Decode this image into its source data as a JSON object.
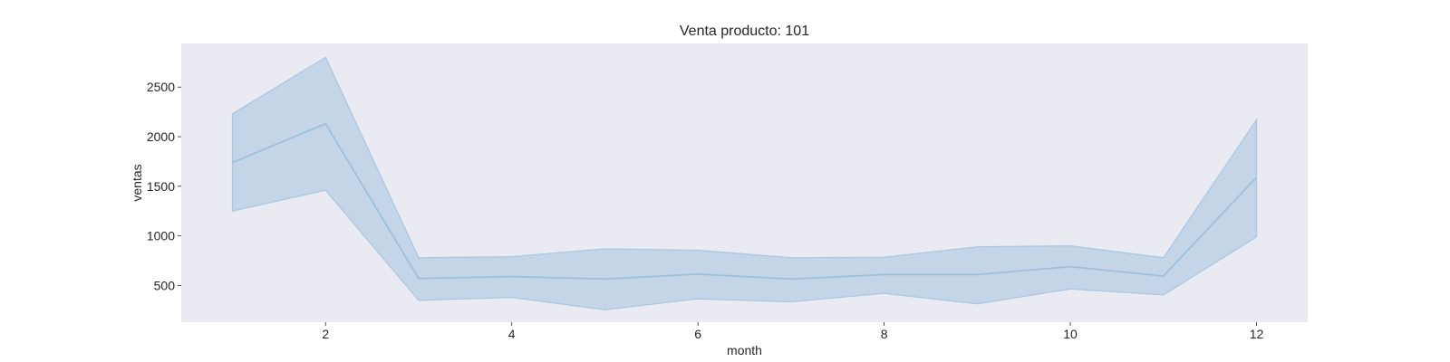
{
  "chart_data": {
    "type": "line",
    "title": "Venta producto: 101",
    "xlabel": "month",
    "ylabel": "ventas",
    "x": [
      1,
      2,
      3,
      4,
      5,
      6,
      7,
      8,
      9,
      10,
      11,
      12
    ],
    "series": [
      {
        "values": [
          1740,
          2130,
          570,
          590,
          565,
          615,
          565,
          610,
          610,
          690,
          595,
          1590
        ],
        "ci_lower": [
          1250,
          1460,
          350,
          380,
          255,
          365,
          335,
          420,
          315,
          465,
          405,
          990
        ],
        "ci_upper": [
          2230,
          2800,
          780,
          790,
          870,
          855,
          780,
          785,
          890,
          900,
          780,
          2170
        ],
        "color": "#9ebfdc",
        "band_color": "#a4c3e0"
      }
    ],
    "xlim": [
      0.45,
      12.55
    ],
    "ylim": [
      130,
      2940
    ],
    "xticks": [
      2,
      4,
      6,
      8,
      10,
      12
    ],
    "yticks": [
      500,
      1000,
      1500,
      2000,
      2500
    ],
    "grid": false,
    "plot_background": "#eaeaf2"
  }
}
